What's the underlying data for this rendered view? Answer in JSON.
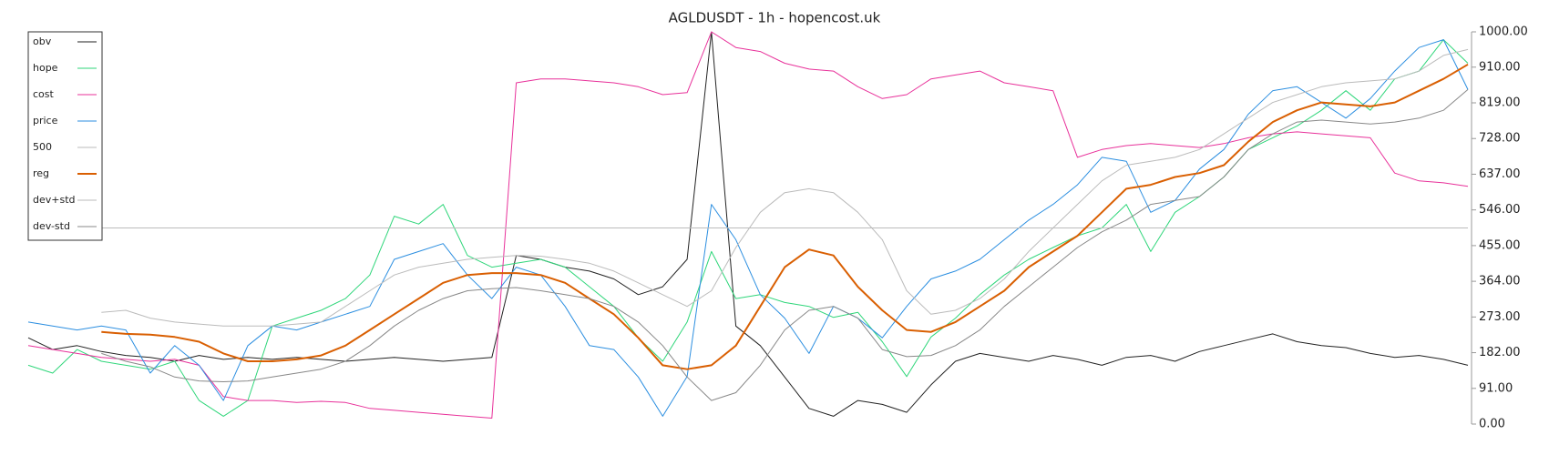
{
  "chart_data": {
    "type": "line",
    "title": "AGLDUSDT - 1h - hopencost.uk",
    "ylim": [
      0,
      1000
    ],
    "yticks": [
      {
        "value": 0,
        "label": "0.00"
      },
      {
        "value": 91,
        "label": "91.00"
      },
      {
        "value": 182,
        "label": "182.00"
      },
      {
        "value": 273,
        "label": "273.00"
      },
      {
        "value": 364,
        "label": "364.00"
      },
      {
        "value": 455,
        "label": "455.00"
      },
      {
        "value": 546,
        "label": "546.00"
      },
      {
        "value": 637,
        "label": "637.00"
      },
      {
        "value": 728,
        "label": "728.00"
      },
      {
        "value": 819,
        "label": "819.00"
      },
      {
        "value": 910,
        "label": "910.00"
      },
      {
        "value": 1000,
        "label": "1000.00"
      }
    ],
    "axis_side": "right",
    "legend": "top-left",
    "series": [
      {
        "name": "obv",
        "color": "#222222",
        "width": 1,
        "values": [
          220,
          190,
          200,
          185,
          175,
          170,
          160,
          175,
          165,
          170,
          165,
          170,
          165,
          160,
          165,
          170,
          165,
          160,
          165,
          170,
          430,
          420,
          400,
          390,
          370,
          330,
          350,
          420,
          1000,
          250,
          200,
          120,
          40,
          20,
          60,
          50,
          30,
          100,
          160,
          180,
          170,
          160,
          175,
          165,
          150,
          170,
          175,
          160,
          185,
          200,
          215,
          230,
          210,
          200,
          195,
          180,
          170,
          175,
          165,
          150
        ]
      },
      {
        "name": "hope",
        "color": "#2fd67a",
        "width": 1,
        "values": [
          150,
          130,
          190,
          160,
          150,
          140,
          160,
          60,
          20,
          60,
          250,
          270,
          290,
          320,
          380,
          530,
          510,
          560,
          430,
          400,
          410,
          420,
          400,
          350,
          300,
          220,
          160,
          260,
          440,
          320,
          330,
          310,
          300,
          272,
          285,
          210,
          121,
          222,
          270,
          330,
          380,
          420,
          450,
          480,
          500,
          560,
          440,
          540,
          580,
          630,
          700,
          730,
          760,
          800,
          850,
          800,
          880,
          900,
          980,
          920
        ]
      },
      {
        "name": "cost",
        "color": "#e8319a",
        "width": 1,
        "values": [
          200,
          190,
          180,
          170,
          165,
          160,
          165,
          150,
          70,
          60,
          60,
          55,
          58,
          55,
          40,
          35,
          30,
          25,
          20,
          15,
          870,
          880,
          880,
          875,
          870,
          860,
          840,
          845,
          1000,
          960,
          950,
          920,
          905,
          900,
          860,
          830,
          840,
          880,
          890,
          900,
          870,
          860,
          850,
          680,
          700,
          710,
          715,
          710,
          705,
          715,
          730,
          740,
          745,
          740,
          735,
          730,
          640,
          620,
          615,
          606
        ]
      },
      {
        "name": "price",
        "color": "#2b8ee0",
        "width": 1,
        "values": [
          260,
          250,
          240,
          250,
          240,
          130,
          200,
          150,
          60,
          200,
          250,
          240,
          260,
          280,
          300,
          420,
          440,
          460,
          380,
          320,
          400,
          380,
          300,
          200,
          190,
          120,
          20,
          121,
          560,
          470,
          330,
          270,
          180,
          300,
          270,
          220,
          300,
          370,
          390,
          420,
          470,
          520,
          560,
          610,
          680,
          670,
          540,
          570,
          650,
          700,
          790,
          850,
          860,
          820,
          780,
          830,
          900,
          960,
          980,
          853
        ]
      },
      {
        "name": "500",
        "color": "#bbbbbb",
        "width": 1,
        "values": [
          500,
          500,
          500,
          500,
          500,
          500,
          500,
          500,
          500,
          500,
          500,
          500,
          500,
          500,
          500,
          500,
          500,
          500,
          500,
          500,
          500,
          500,
          500,
          500,
          500,
          500,
          500,
          500,
          500,
          500,
          500,
          500,
          500,
          500,
          500,
          500,
          500,
          500,
          500,
          500,
          500,
          500,
          500,
          500,
          500,
          500,
          500,
          500,
          500,
          500,
          500,
          500,
          500,
          500,
          500,
          500,
          500,
          500,
          500,
          500
        ]
      },
      {
        "name": "reg",
        "color": "#d95f02",
        "width": 2,
        "values": [
          null,
          null,
          null,
          235,
          230,
          228,
          222,
          210,
          180,
          160,
          160,
          165,
          175,
          200,
          240,
          280,
          320,
          360,
          380,
          385,
          385,
          380,
          360,
          320,
          280,
          220,
          150,
          140,
          150,
          200,
          300,
          400,
          445,
          430,
          350,
          290,
          240,
          235,
          260,
          300,
          340,
          400,
          440,
          480,
          540,
          600,
          610,
          630,
          640,
          660,
          720,
          770,
          800,
          820,
          815,
          810,
          820,
          850,
          880,
          917
        ]
      },
      {
        "name": "dev+std",
        "color": "#bbbbbb",
        "width": 1,
        "values": [
          null,
          null,
          null,
          285,
          290,
          270,
          260,
          255,
          250,
          250,
          250,
          255,
          260,
          300,
          340,
          380,
          400,
          410,
          420,
          425,
          430,
          428,
          420,
          410,
          390,
          360,
          330,
          300,
          340,
          450,
          540,
          590,
          600,
          590,
          540,
          470,
          340,
          280,
          290,
          320,
          370,
          440,
          500,
          560,
          620,
          660,
          670,
          680,
          700,
          740,
          780,
          820,
          840,
          860,
          870,
          875,
          880,
          900,
          940,
          955
        ]
      },
      {
        "name": "dev-std",
        "color": "#888888",
        "width": 1,
        "values": [
          null,
          null,
          null,
          180,
          160,
          146,
          120,
          110,
          108,
          110,
          120,
          130,
          140,
          160,
          200,
          250,
          290,
          320,
          340,
          345,
          348,
          340,
          330,
          320,
          300,
          260,
          200,
          120,
          60,
          80,
          150,
          240,
          290,
          300,
          270,
          190,
          172,
          175,
          200,
          240,
          300,
          350,
          400,
          450,
          490,
          520,
          560,
          570,
          580,
          630,
          700,
          740,
          770,
          775,
          770,
          765,
          770,
          780,
          800,
          853
        ]
      }
    ]
  }
}
